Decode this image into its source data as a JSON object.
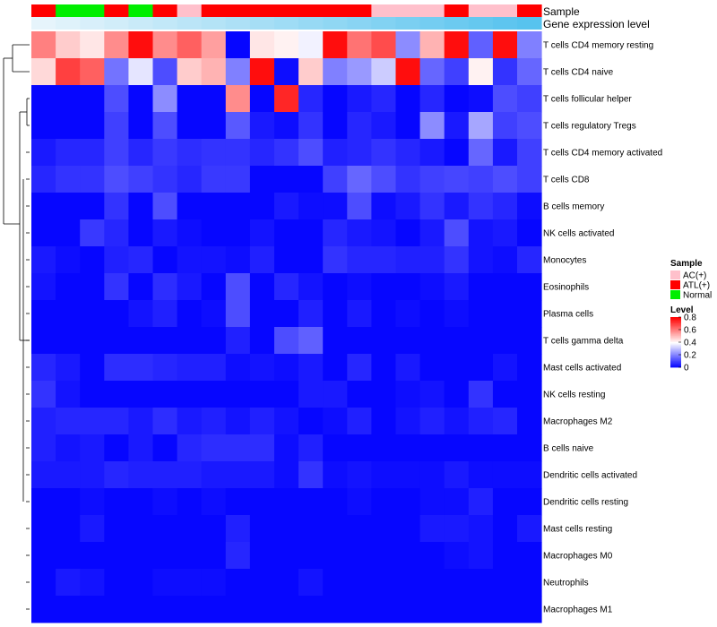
{
  "chart_data": {
    "type": "heatmap",
    "annotation_tracks": [
      "Sample",
      "Gene expression level"
    ],
    "sample_annotation": [
      "ATL(+)",
      "Normal",
      "Normal",
      "ATL(+)",
      "Normal",
      "ATL(+)",
      "AC(+)",
      "ATL(+)",
      "ATL(+)",
      "ATL(+)",
      "ATL(+)",
      "ATL(+)",
      "ATL(+)",
      "ATL(+)",
      "AC(+)",
      "AC(+)",
      "AC(+)",
      "ATL(+)",
      "AC(+)",
      "AC(+)",
      "ATL(+)"
    ],
    "expression_level": [
      0.0,
      0.05,
      0.1,
      0.15,
      0.2,
      0.25,
      0.3,
      0.35,
      0.4,
      0.45,
      0.5,
      0.55,
      0.6,
      0.65,
      0.7,
      0.75,
      0.8,
      0.85,
      0.9,
      0.95,
      1.0
    ],
    "rows": [
      "T cells CD4 memory resting",
      "T cells CD4 naive",
      "T cells follicular helper",
      "T cells regulatory  Tregs",
      "T cells CD4 memory activated",
      "T cells CD8",
      "B cells memory",
      "NK cells activated",
      "Monocytes",
      "Eosinophils",
      "Plasma cells",
      "T cells gamma delta",
      "Mast cells activated",
      "NK cells resting",
      "Macrophages M2",
      "B cells naive",
      "Dendritic cells activated",
      "Dendritic cells resting",
      "Mast cells resting",
      "Macrophages M0",
      "Neutrophils",
      "Macrophages M1"
    ],
    "values": [
      [
        0.6,
        0.48,
        0.44,
        0.58,
        0.78,
        0.58,
        0.65,
        0.55,
        0.01,
        0.44,
        0.42,
        0.38,
        0.78,
        0.62,
        0.68,
        0.22,
        0.52,
        0.78,
        0.15,
        0.78,
        0.2
      ],
      [
        0.46,
        0.7,
        0.65,
        0.18,
        0.36,
        0.12,
        0.48,
        0.52,
        0.2,
        0.78,
        0.02,
        0.48,
        0.2,
        0.24,
        0.32,
        0.78,
        0.16,
        0.1,
        0.42,
        0.08,
        0.16
      ],
      [
        0.01,
        0.01,
        0.01,
        0.12,
        0.01,
        0.22,
        0.01,
        0.01,
        0.58,
        0.01,
        0.74,
        0.06,
        0.01,
        0.04,
        0.06,
        0.01,
        0.06,
        0.01,
        0.02,
        0.12,
        0.1
      ],
      [
        0.01,
        0.01,
        0.01,
        0.1,
        0.01,
        0.12,
        0.01,
        0.01,
        0.14,
        0.04,
        0.02,
        0.08,
        0.01,
        0.06,
        0.04,
        0.01,
        0.22,
        0.04,
        0.26,
        0.1,
        0.12
      ],
      [
        0.04,
        0.06,
        0.06,
        0.1,
        0.06,
        0.09,
        0.07,
        0.08,
        0.08,
        0.06,
        0.08,
        0.12,
        0.05,
        0.06,
        0.08,
        0.06,
        0.04,
        0.01,
        0.16,
        0.04,
        0.1
      ],
      [
        0.06,
        0.08,
        0.08,
        0.12,
        0.1,
        0.08,
        0.06,
        0.09,
        0.09,
        0.01,
        0.01,
        0.01,
        0.1,
        0.16,
        0.12,
        0.08,
        0.1,
        0.11,
        0.1,
        0.12,
        0.1
      ],
      [
        0.01,
        0.01,
        0.01,
        0.08,
        0.01,
        0.12,
        0.01,
        0.01,
        0.01,
        0.01,
        0.04,
        0.02,
        0.02,
        0.12,
        0.02,
        0.04,
        0.08,
        0.04,
        0.08,
        0.06,
        0.02
      ],
      [
        0.01,
        0.01,
        0.09,
        0.06,
        0.01,
        0.04,
        0.02,
        0.01,
        0.01,
        0.03,
        0.01,
        0.01,
        0.06,
        0.04,
        0.03,
        0.01,
        0.04,
        0.12,
        0.03,
        0.04,
        0.01
      ],
      [
        0.04,
        0.02,
        0.01,
        0.05,
        0.06,
        0.01,
        0.03,
        0.03,
        0.02,
        0.05,
        0.01,
        0.01,
        0.08,
        0.06,
        0.06,
        0.05,
        0.05,
        0.08,
        0.03,
        0.02,
        0.06
      ],
      [
        0.03,
        0.01,
        0.01,
        0.08,
        0.01,
        0.07,
        0.04,
        0.01,
        0.12,
        0.01,
        0.06,
        0.03,
        0.01,
        0.02,
        0.01,
        0.01,
        0.02,
        0.04,
        0.01,
        0.01,
        0.01
      ],
      [
        0.01,
        0.01,
        0.01,
        0.01,
        0.03,
        0.05,
        0.01,
        0.02,
        0.12,
        0.01,
        0.01,
        0.05,
        0.01,
        0.04,
        0.01,
        0.02,
        0.01,
        0.02,
        0.01,
        0.01,
        0.01
      ],
      [
        0.01,
        0.01,
        0.01,
        0.01,
        0.01,
        0.01,
        0.01,
        0.01,
        0.05,
        0.01,
        0.12,
        0.15,
        0.01,
        0.01,
        0.01,
        0.01,
        0.01,
        0.01,
        0.01,
        0.01,
        0.01
      ],
      [
        0.06,
        0.04,
        0.01,
        0.07,
        0.07,
        0.06,
        0.05,
        0.05,
        0.02,
        0.03,
        0.02,
        0.04,
        0.01,
        0.06,
        0.01,
        0.04,
        0.01,
        0.01,
        0.01,
        0.03,
        0.01
      ],
      [
        0.08,
        0.03,
        0.01,
        0.01,
        0.01,
        0.01,
        0.01,
        0.01,
        0.01,
        0.01,
        0.01,
        0.04,
        0.04,
        0.01,
        0.01,
        0.02,
        0.03,
        0.01,
        0.08,
        0.01,
        0.01
      ],
      [
        0.05,
        0.06,
        0.06,
        0.06,
        0.04,
        0.07,
        0.04,
        0.05,
        0.03,
        0.05,
        0.03,
        0.01,
        0.02,
        0.05,
        0.01,
        0.03,
        0.05,
        0.03,
        0.05,
        0.06,
        0.01
      ],
      [
        0.05,
        0.03,
        0.04,
        0.01,
        0.04,
        0.01,
        0.06,
        0.07,
        0.07,
        0.07,
        0.02,
        0.05,
        0.01,
        0.01,
        0.01,
        0.01,
        0.01,
        0.01,
        0.01,
        0.01,
        0.01
      ],
      [
        0.04,
        0.04,
        0.04,
        0.06,
        0.05,
        0.05,
        0.05,
        0.04,
        0.04,
        0.04,
        0.02,
        0.08,
        0.02,
        0.03,
        0.02,
        0.02,
        0.02,
        0.04,
        0.02,
        0.02,
        0.02
      ],
      [
        0.01,
        0.01,
        0.02,
        0.01,
        0.01,
        0.02,
        0.01,
        0.02,
        0.01,
        0.01,
        0.01,
        0.01,
        0.01,
        0.02,
        0.01,
        0.01,
        0.02,
        0.02,
        0.05,
        0.01,
        0.01
      ],
      [
        0.01,
        0.01,
        0.04,
        0.01,
        0.01,
        0.01,
        0.01,
        0.01,
        0.05,
        0.01,
        0.01,
        0.01,
        0.01,
        0.01,
        0.01,
        0.01,
        0.04,
        0.04,
        0.03,
        0.01,
        0.04
      ],
      [
        0.01,
        0.01,
        0.01,
        0.01,
        0.01,
        0.01,
        0.01,
        0.01,
        0.06,
        0.01,
        0.01,
        0.01,
        0.01,
        0.01,
        0.01,
        0.01,
        0.01,
        0.02,
        0.03,
        0.01,
        0.01
      ],
      [
        0.01,
        0.04,
        0.03,
        0.01,
        0.01,
        0.02,
        0.02,
        0.02,
        0.01,
        0.01,
        0.01,
        0.03,
        0.01,
        0.01,
        0.01,
        0.01,
        0.01,
        0.01,
        0.01,
        0.01,
        0.01
      ],
      [
        0.01,
        0.01,
        0.01,
        0.01,
        0.01,
        0.01,
        0.01,
        0.01,
        0.01,
        0.01,
        0.01,
        0.01,
        0.01,
        0.01,
        0.01,
        0.01,
        0.01,
        0.01,
        0.01,
        0.01,
        0.01
      ]
    ],
    "legend": {
      "sample_title": "Sample",
      "sample_entries": [
        {
          "label": "AC(+)",
          "color": "#ffc0cb"
        },
        {
          "label": "ATL(+)",
          "color": "#ff0000"
        },
        {
          "label": "Normal",
          "color": "#00ee00"
        }
      ],
      "level_title": "Level",
      "level_ticks": [
        "0.8",
        "0.6",
        "0.4",
        "0.2",
        "0"
      ],
      "level_tick_values": [
        0.8,
        0.6,
        0.4,
        0.2,
        0
      ]
    },
    "color_scale": {
      "low": "#0000ff",
      "mid": "#ffffff",
      "high": "#ff0000",
      "domain": [
        0,
        0.4,
        0.8
      ]
    },
    "expression_colors": {
      "low": "#e6f4fb",
      "high": "#57c3ee"
    }
  }
}
